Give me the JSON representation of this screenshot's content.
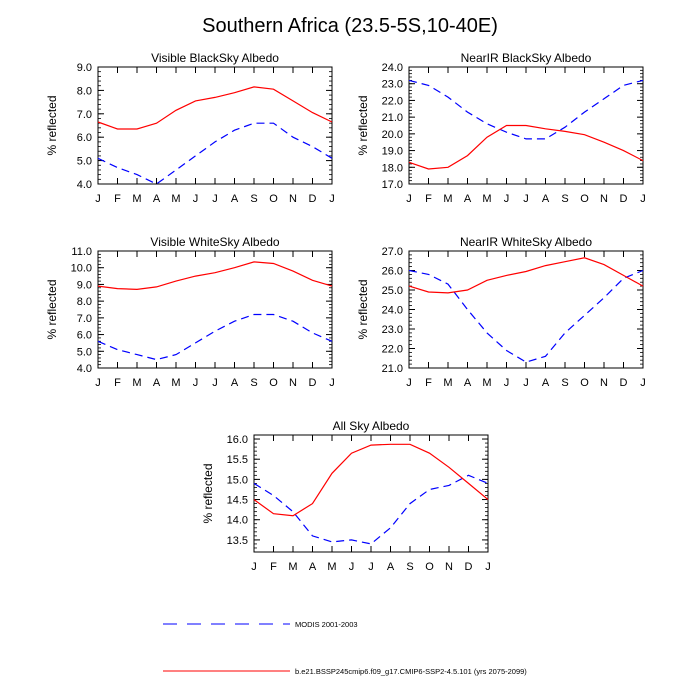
{
  "title": "Southern Africa (23.5-5S,10-40E)",
  "months": [
    "J",
    "F",
    "M",
    "A",
    "M",
    "J",
    "J",
    "A",
    "S",
    "O",
    "N",
    "D",
    "J"
  ],
  "legend": {
    "modis_label": "MODIS 2001-2003",
    "model_label": "b.e21.BSSP245cmip6.f09_g17.CMIP6-SSP2-4.5.101 (yrs 2075-2099)",
    "modis_color": "#0000ff",
    "model_color": "#ff0000"
  },
  "chart_data": [
    {
      "type": "line",
      "title": "Visible BlackSky Albedo",
      "ylabel": "% reflected",
      "ylim": [
        4.0,
        9.0
      ],
      "yticks": [
        "4.0",
        "5.0",
        "6.0",
        "7.0",
        "8.0",
        "9.0"
      ],
      "series": [
        {
          "name": "MODIS 2001-2003",
          "color": "#0000ff",
          "dash": true,
          "values": [
            5.1,
            4.7,
            4.4,
            4.0,
            4.6,
            5.2,
            5.8,
            6.3,
            6.6,
            6.6,
            6.0,
            5.6,
            5.1
          ]
        },
        {
          "name": "b.e21.BSSP245cmip6.f09_g17.CMIP6-SSP2-4.5.101 (yrs 2075-2099)",
          "color": "#ff0000",
          "dash": false,
          "values": [
            6.65,
            6.35,
            6.35,
            6.6,
            7.15,
            7.55,
            7.7,
            7.9,
            8.15,
            8.05,
            7.55,
            7.05,
            6.65
          ]
        }
      ]
    },
    {
      "type": "line",
      "title": "NearIR BlackSky Albedo",
      "ylabel": "% reflected",
      "ylim": [
        17.0,
        24.0
      ],
      "yticks": [
        "17.0",
        "18.0",
        "19.0",
        "20.0",
        "21.0",
        "22.0",
        "23.0",
        "24.0"
      ],
      "series": [
        {
          "name": "MODIS 2001-2003",
          "color": "#0000ff",
          "dash": true,
          "values": [
            23.2,
            22.9,
            22.2,
            21.3,
            20.6,
            20.1,
            19.7,
            19.7,
            20.4,
            21.3,
            22.1,
            22.9,
            23.2
          ]
        },
        {
          "name": "b.e21.BSSP245cmip6.f09_g17.CMIP6-SSP2-4.5.101 (yrs 2075-2099)",
          "color": "#ff0000",
          "dash": false,
          "values": [
            18.3,
            17.9,
            18.0,
            18.7,
            19.8,
            20.5,
            20.5,
            20.3,
            20.15,
            19.95,
            19.5,
            19.0,
            18.4
          ]
        }
      ]
    },
    {
      "type": "line",
      "title": "Visible WhiteSky Albedo",
      "ylabel": "% reflected",
      "ylim": [
        4.0,
        11.0
      ],
      "yticks": [
        "4.0",
        "5.0",
        "6.0",
        "7.0",
        "8.0",
        "9.0",
        "10.0",
        "11.0"
      ],
      "series": [
        {
          "name": "MODIS 2001-2003",
          "color": "#0000ff",
          "dash": true,
          "values": [
            5.6,
            5.1,
            4.8,
            4.5,
            4.8,
            5.5,
            6.2,
            6.8,
            7.2,
            7.2,
            6.8,
            6.1,
            5.6
          ]
        },
        {
          "name": "b.e21.BSSP245cmip6.f09_g17.CMIP6-SSP2-4.5.101 (yrs 2075-2099)",
          "color": "#ff0000",
          "dash": false,
          "values": [
            8.9,
            8.75,
            8.7,
            8.85,
            9.2,
            9.5,
            9.7,
            10.0,
            10.35,
            10.25,
            9.8,
            9.25,
            8.9
          ]
        }
      ]
    },
    {
      "type": "line",
      "title": "NearIR WhiteSky Albedo",
      "ylabel": "% reflected",
      "ylim": [
        21.0,
        27.0
      ],
      "yticks": [
        "21.0",
        "22.0",
        "23.0",
        "24.0",
        "25.0",
        "26.0",
        "27.0"
      ],
      "series": [
        {
          "name": "MODIS 2001-2003",
          "color": "#0000ff",
          "dash": true,
          "values": [
            26.0,
            25.8,
            25.3,
            24.0,
            22.8,
            21.9,
            21.3,
            21.6,
            22.8,
            23.7,
            24.6,
            25.6,
            26.0
          ]
        },
        {
          "name": "b.e21.BSSP245cmip6.f09_g17.CMIP6-SSP2-4.5.101 (yrs 2075-2099)",
          "color": "#ff0000",
          "dash": false,
          "values": [
            25.2,
            24.9,
            24.85,
            25.0,
            25.5,
            25.75,
            25.95,
            26.25,
            26.45,
            26.65,
            26.3,
            25.75,
            25.2
          ]
        }
      ]
    },
    {
      "type": "line",
      "title": "All Sky Albedo",
      "ylabel": "% reflected",
      "ylim": [
        13.2,
        16.1
      ],
      "yticks": [
        "13.5",
        "14.0",
        "14.5",
        "15.0",
        "15.5",
        "16.0"
      ],
      "ytick_values": [
        13.5,
        14.0,
        14.5,
        15.0,
        15.5,
        16.0
      ],
      "series": [
        {
          "name": "MODIS 2001-2003",
          "color": "#0000ff",
          "dash": true,
          "values": [
            14.9,
            14.6,
            14.2,
            13.6,
            13.45,
            13.5,
            13.4,
            13.8,
            14.4,
            14.75,
            14.85,
            15.1,
            14.9
          ]
        },
        {
          "name": "b.e21.BSSP245cmip6.f09_g17.CMIP6-SSP2-4.5.101 (yrs 2075-2099)",
          "color": "#ff0000",
          "dash": false,
          "values": [
            14.5,
            14.15,
            14.1,
            14.4,
            15.15,
            15.65,
            15.85,
            15.87,
            15.87,
            15.65,
            15.3,
            14.9,
            14.5
          ]
        }
      ]
    }
  ]
}
